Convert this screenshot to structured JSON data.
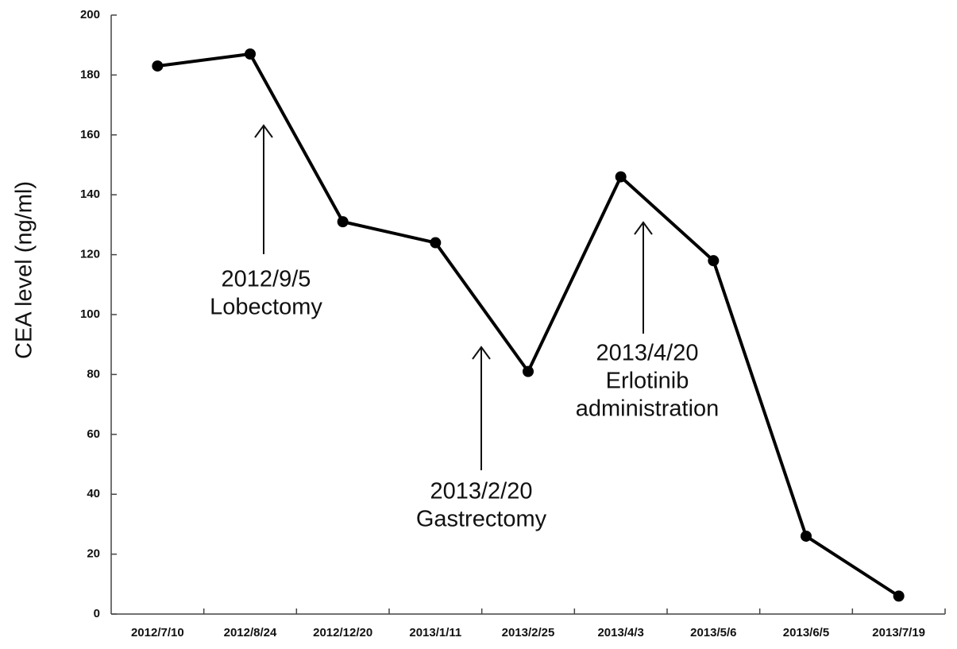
{
  "chart_data": {
    "type": "line",
    "y_label": "CEA level (ng/ml)",
    "categories": [
      "2012/7/10",
      "2012/8/24",
      "2012/12/20",
      "2013/1/11",
      "2013/2/25",
      "2013/4/3",
      "2013/5/6",
      "2013/6/5",
      "2013/7/19"
    ],
    "values": [
      183,
      187,
      131,
      124,
      81,
      146,
      118,
      26,
      6
    ],
    "color": "#000000",
    "ylim": [
      0,
      200
    ],
    "yticks": [
      0,
      20,
      40,
      60,
      80,
      100,
      120,
      140,
      160,
      180,
      200
    ],
    "annotations": [
      {
        "lines": [
          "2012/9/5",
          "Lobectomy"
        ]
      },
      {
        "lines": [
          "2013/2/20",
          "Gastrectomy"
        ]
      },
      {
        "lines": [
          "2013/4/20",
          "Erlotinib",
          "administration"
        ]
      }
    ]
  }
}
